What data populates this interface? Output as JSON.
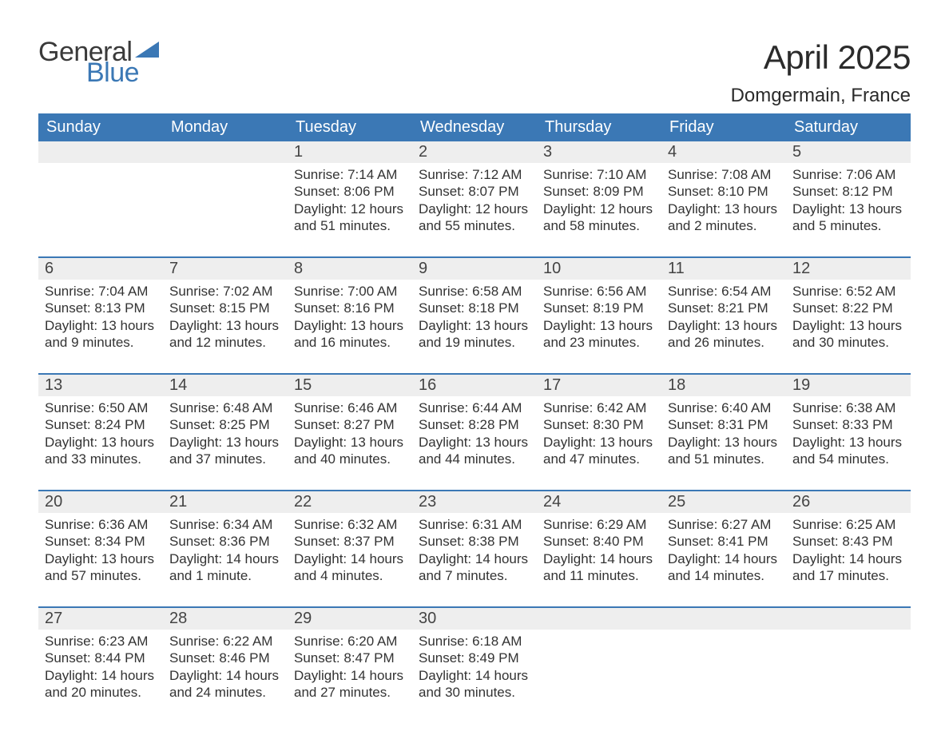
{
  "brand": {
    "name_part1": "General",
    "name_part2": "Blue",
    "text_color_gray": "#3a3a3a",
    "text_color_blue": "#3b78b5",
    "triangle_color": "#3b78b5"
  },
  "header": {
    "title": "April 2025",
    "location": "Domgermain, France",
    "title_fontsize": 42,
    "location_fontsize": 24,
    "text_color": "#2b2b2b"
  },
  "calendar": {
    "header_bg": "#3b78b5",
    "header_fg": "#ffffff",
    "daynum_bg": "#eeeeee",
    "row_top_border": "#3b78b5",
    "body_text_color": "#333333",
    "dow_fontsize": 20,
    "daynum_fontsize": 20,
    "body_fontsize": 17,
    "days_of_week": [
      "Sunday",
      "Monday",
      "Tuesday",
      "Wednesday",
      "Thursday",
      "Friday",
      "Saturday"
    ],
    "weeks": [
      [
        {
          "n": "",
          "sunrise": "",
          "sunset": "",
          "daylight": ""
        },
        {
          "n": "",
          "sunrise": "",
          "sunset": "",
          "daylight": ""
        },
        {
          "n": "1",
          "sunrise": "Sunrise: 7:14 AM",
          "sunset": "Sunset: 8:06 PM",
          "daylight": "Daylight: 12 hours and 51 minutes."
        },
        {
          "n": "2",
          "sunrise": "Sunrise: 7:12 AM",
          "sunset": "Sunset: 8:07 PM",
          "daylight": "Daylight: 12 hours and 55 minutes."
        },
        {
          "n": "3",
          "sunrise": "Sunrise: 7:10 AM",
          "sunset": "Sunset: 8:09 PM",
          "daylight": "Daylight: 12 hours and 58 minutes."
        },
        {
          "n": "4",
          "sunrise": "Sunrise: 7:08 AM",
          "sunset": "Sunset: 8:10 PM",
          "daylight": "Daylight: 13 hours and 2 minutes."
        },
        {
          "n": "5",
          "sunrise": "Sunrise: 7:06 AM",
          "sunset": "Sunset: 8:12 PM",
          "daylight": "Daylight: 13 hours and 5 minutes."
        }
      ],
      [
        {
          "n": "6",
          "sunrise": "Sunrise: 7:04 AM",
          "sunset": "Sunset: 8:13 PM",
          "daylight": "Daylight: 13 hours and 9 minutes."
        },
        {
          "n": "7",
          "sunrise": "Sunrise: 7:02 AM",
          "sunset": "Sunset: 8:15 PM",
          "daylight": "Daylight: 13 hours and 12 minutes."
        },
        {
          "n": "8",
          "sunrise": "Sunrise: 7:00 AM",
          "sunset": "Sunset: 8:16 PM",
          "daylight": "Daylight: 13 hours and 16 minutes."
        },
        {
          "n": "9",
          "sunrise": "Sunrise: 6:58 AM",
          "sunset": "Sunset: 8:18 PM",
          "daylight": "Daylight: 13 hours and 19 minutes."
        },
        {
          "n": "10",
          "sunrise": "Sunrise: 6:56 AM",
          "sunset": "Sunset: 8:19 PM",
          "daylight": "Daylight: 13 hours and 23 minutes."
        },
        {
          "n": "11",
          "sunrise": "Sunrise: 6:54 AM",
          "sunset": "Sunset: 8:21 PM",
          "daylight": "Daylight: 13 hours and 26 minutes."
        },
        {
          "n": "12",
          "sunrise": "Sunrise: 6:52 AM",
          "sunset": "Sunset: 8:22 PM",
          "daylight": "Daylight: 13 hours and 30 minutes."
        }
      ],
      [
        {
          "n": "13",
          "sunrise": "Sunrise: 6:50 AM",
          "sunset": "Sunset: 8:24 PM",
          "daylight": "Daylight: 13 hours and 33 minutes."
        },
        {
          "n": "14",
          "sunrise": "Sunrise: 6:48 AM",
          "sunset": "Sunset: 8:25 PM",
          "daylight": "Daylight: 13 hours and 37 minutes."
        },
        {
          "n": "15",
          "sunrise": "Sunrise: 6:46 AM",
          "sunset": "Sunset: 8:27 PM",
          "daylight": "Daylight: 13 hours and 40 minutes."
        },
        {
          "n": "16",
          "sunrise": "Sunrise: 6:44 AM",
          "sunset": "Sunset: 8:28 PM",
          "daylight": "Daylight: 13 hours and 44 minutes."
        },
        {
          "n": "17",
          "sunrise": "Sunrise: 6:42 AM",
          "sunset": "Sunset: 8:30 PM",
          "daylight": "Daylight: 13 hours and 47 minutes."
        },
        {
          "n": "18",
          "sunrise": "Sunrise: 6:40 AM",
          "sunset": "Sunset: 8:31 PM",
          "daylight": "Daylight: 13 hours and 51 minutes."
        },
        {
          "n": "19",
          "sunrise": "Sunrise: 6:38 AM",
          "sunset": "Sunset: 8:33 PM",
          "daylight": "Daylight: 13 hours and 54 minutes."
        }
      ],
      [
        {
          "n": "20",
          "sunrise": "Sunrise: 6:36 AM",
          "sunset": "Sunset: 8:34 PM",
          "daylight": "Daylight: 13 hours and 57 minutes."
        },
        {
          "n": "21",
          "sunrise": "Sunrise: 6:34 AM",
          "sunset": "Sunset: 8:36 PM",
          "daylight": "Daylight: 14 hours and 1 minute."
        },
        {
          "n": "22",
          "sunrise": "Sunrise: 6:32 AM",
          "sunset": "Sunset: 8:37 PM",
          "daylight": "Daylight: 14 hours and 4 minutes."
        },
        {
          "n": "23",
          "sunrise": "Sunrise: 6:31 AM",
          "sunset": "Sunset: 8:38 PM",
          "daylight": "Daylight: 14 hours and 7 minutes."
        },
        {
          "n": "24",
          "sunrise": "Sunrise: 6:29 AM",
          "sunset": "Sunset: 8:40 PM",
          "daylight": "Daylight: 14 hours and 11 minutes."
        },
        {
          "n": "25",
          "sunrise": "Sunrise: 6:27 AM",
          "sunset": "Sunset: 8:41 PM",
          "daylight": "Daylight: 14 hours and 14 minutes."
        },
        {
          "n": "26",
          "sunrise": "Sunrise: 6:25 AM",
          "sunset": "Sunset: 8:43 PM",
          "daylight": "Daylight: 14 hours and 17 minutes."
        }
      ],
      [
        {
          "n": "27",
          "sunrise": "Sunrise: 6:23 AM",
          "sunset": "Sunset: 8:44 PM",
          "daylight": "Daylight: 14 hours and 20 minutes."
        },
        {
          "n": "28",
          "sunrise": "Sunrise: 6:22 AM",
          "sunset": "Sunset: 8:46 PM",
          "daylight": "Daylight: 14 hours and 24 minutes."
        },
        {
          "n": "29",
          "sunrise": "Sunrise: 6:20 AM",
          "sunset": "Sunset: 8:47 PM",
          "daylight": "Daylight: 14 hours and 27 minutes."
        },
        {
          "n": "30",
          "sunrise": "Sunrise: 6:18 AM",
          "sunset": "Sunset: 8:49 PM",
          "daylight": "Daylight: 14 hours and 30 minutes."
        },
        {
          "n": "",
          "sunrise": "",
          "sunset": "",
          "daylight": ""
        },
        {
          "n": "",
          "sunrise": "",
          "sunset": "",
          "daylight": ""
        },
        {
          "n": "",
          "sunrise": "",
          "sunset": "",
          "daylight": ""
        }
      ]
    ]
  }
}
